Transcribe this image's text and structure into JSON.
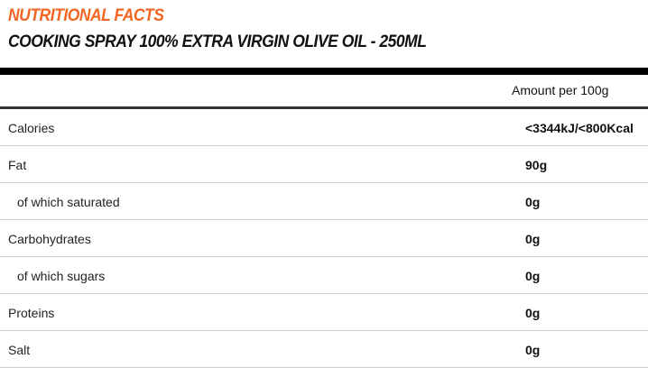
{
  "header": {
    "section_title": "NUTRITIONAL FACTS",
    "product_title": "COOKING SPRAY 100% EXTRA VIRGIN OLIVE OIL - 250ML"
  },
  "table": {
    "column_header": "Amount per 100g",
    "rows": [
      {
        "label": "Calories",
        "value": "<3344kJ/<800Kcal",
        "sub": false
      },
      {
        "label": "Fat",
        "value": "90g",
        "sub": false
      },
      {
        "label": "of which saturated",
        "value": "0g",
        "sub": true
      },
      {
        "label": "Carbohydrates",
        "value": "0g",
        "sub": false
      },
      {
        "label": "of which sugars",
        "value": "0g",
        "sub": true
      },
      {
        "label": "Proteins",
        "value": "0g",
        "sub": false
      },
      {
        "label": "Salt",
        "value": "0g",
        "sub": false
      }
    ]
  },
  "colors": {
    "accent": "#f26522"
  }
}
